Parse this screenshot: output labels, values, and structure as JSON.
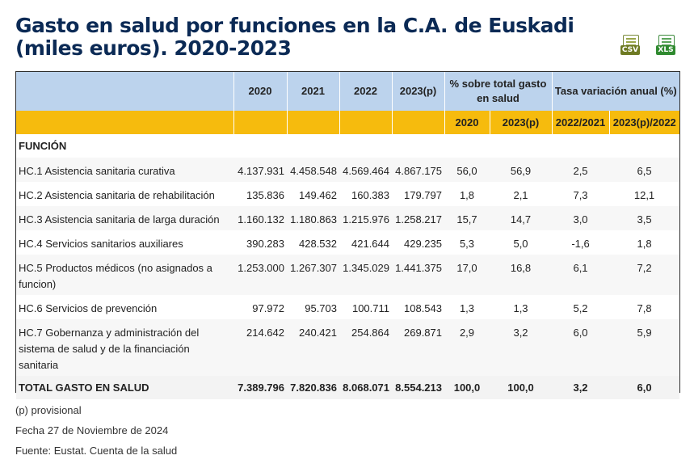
{
  "title": "Gasto en salud por funciones en la C.A. de Euskadi (miles euros). 2020-2023",
  "downloads": {
    "csv_label": "CSV",
    "xls_label": "XLS"
  },
  "chart_data": {
    "type": "table",
    "title": "Gasto en salud por funciones en la C.A. de Euskadi (miles euros). 2020-2023",
    "header_top": {
      "blank": "",
      "y2020": "2020",
      "y2021": "2021",
      "y2022": "2022",
      "y2023": "2023(p)",
      "pct_group": "% sobre total gasto en salud",
      "var_group": "Tasa variación anual (%)"
    },
    "header_sub": {
      "pct2020": "2020",
      "pct2023": "2023(p)",
      "var2122": "2022/2021",
      "var23": "2023(p)/2022"
    },
    "section_label": "FUNCIÓN",
    "rows": [
      {
        "label": "HC.1 Asistencia sanitaria curativa",
        "values": [
          "4.137.931",
          "4.458.548",
          "4.569.464",
          "4.867.175",
          "56,0",
          "56,9",
          "2,5",
          "6,5"
        ]
      },
      {
        "label": "HC.2 Asistencia sanitaria de rehabilitación",
        "values": [
          "135.836",
          "149.462",
          "160.383",
          "179.797",
          "1,8",
          "2,1",
          "7,3",
          "12,1"
        ]
      },
      {
        "label": "HC.3 Asistencia sanitaria de larga duración",
        "values": [
          "1.160.132",
          "1.180.863",
          "1.215.976",
          "1.258.217",
          "15,7",
          "14,7",
          "3,0",
          "3,5"
        ]
      },
      {
        "label": "HC.4 Servicios sanitarios auxiliares",
        "values": [
          "390.283",
          "428.532",
          "421.644",
          "429.235",
          "5,3",
          "5,0",
          "-1,6",
          "1,8"
        ]
      },
      {
        "label": "HC.5 Productos médicos (no asignados a funcion)",
        "values": [
          "1.253.000",
          "1.267.307",
          "1.345.029",
          "1.441.375",
          "17,0",
          "16,8",
          "6,1",
          "7,2"
        ]
      },
      {
        "label": "HC.6 Servicios de prevención",
        "values": [
          "97.972",
          "95.703",
          "100.711",
          "108.543",
          "1,3",
          "1,3",
          "5,2",
          "7,8"
        ]
      },
      {
        "label": "HC.7 Gobernanza y administración del sistema de salud y de la financiación sanitaria",
        "values": [
          "214.642",
          "240.421",
          "254.864",
          "269.871",
          "2,9",
          "3,2",
          "6,0",
          "5,9"
        ]
      }
    ],
    "total": {
      "label": "TOTAL GASTO EN SALUD",
      "values": [
        "7.389.796",
        "7.820.836",
        "8.068.071",
        "8.554.213",
        "100,0",
        "100,0",
        "3,2",
        "6,0"
      ]
    }
  },
  "notes": {
    "provisional": "(p) provisional",
    "date": "Fecha 27 de Noviembre de 2024",
    "source": "Fuente: Eustat. Cuenta de la salud"
  },
  "colors": {
    "title": "#0b2a55",
    "header_blue": "#bcd3ed",
    "header_yellow": "#f6bb0d",
    "csv": "#6e7a23",
    "xls": "#2f8a2f"
  }
}
